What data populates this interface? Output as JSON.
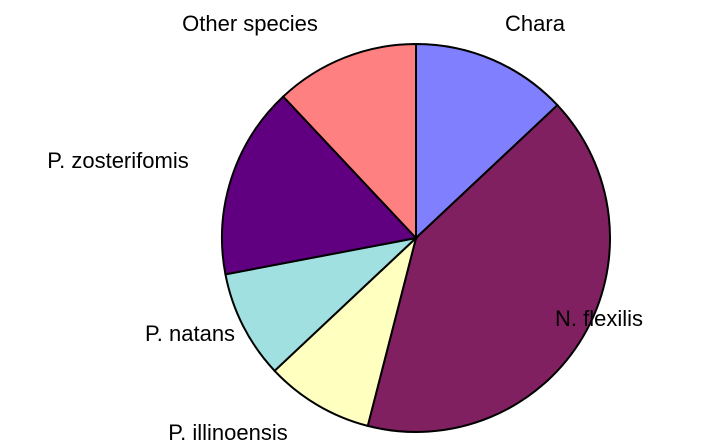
{
  "chart_data": {
    "type": "pie",
    "categories": [
      "Chara",
      "N. flexilis",
      "P. illinoensis",
      "P. natans",
      "P. zosterifomis",
      "Other species"
    ],
    "values": [
      13,
      41,
      9,
      9,
      16,
      12
    ],
    "colors": [
      "#8080ff",
      "#802060",
      "#ffffc0",
      "#a0e0e0",
      "#600080",
      "#ff8080"
    ]
  }
}
